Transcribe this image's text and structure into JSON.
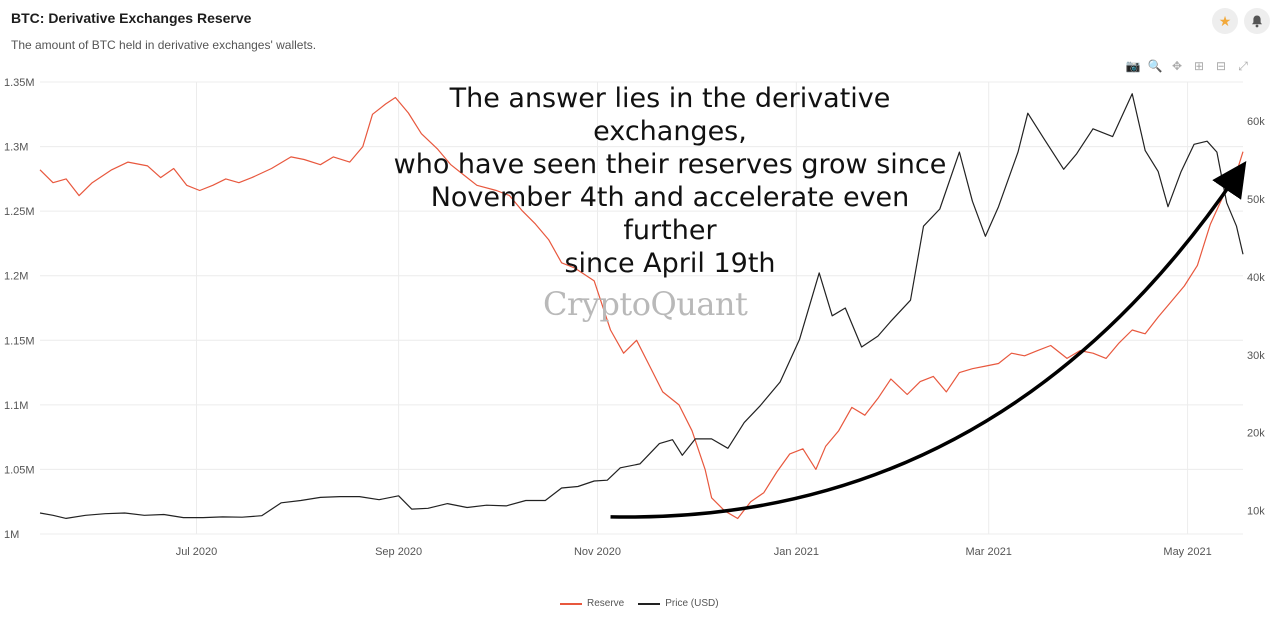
{
  "header": {
    "title": "BTC: Derivative Exchanges Reserve",
    "subtitle": "The amount of BTC held in derivative exchanges' wallets.",
    "star_icon": "star-icon",
    "bell_icon": "bell-icon"
  },
  "toolbar": {
    "icons": [
      "camera-icon",
      "zoom-icon",
      "pan-icon",
      "zoom-in-icon",
      "zoom-out-icon",
      "reset-icon"
    ],
    "glyphs": [
      "📷",
      "🔍",
      "✥",
      "⊞",
      "⊟",
      "⤢"
    ]
  },
  "annotation": {
    "lines": [
      "The answer lies in the derivative exchanges,",
      "who have seen their reserves grow since",
      "November 4th and accelerate even further",
      "since April 19th"
    ]
  },
  "watermark": "CryptoQuant",
  "colors": {
    "reserve": "#e8583e",
    "price": "#222222",
    "grid": "#ececec",
    "arrow": "#000000"
  },
  "chart_data": {
    "type": "line",
    "x_range": [
      "2020-05-14",
      "2021-05-18"
    ],
    "x_ticks": [
      {
        "date": "2020-07-01",
        "label": "Jul 2020"
      },
      {
        "date": "2020-09-01",
        "label": "Sep 2020"
      },
      {
        "date": "2020-11-01",
        "label": "Nov 2020"
      },
      {
        "date": "2021-01-01",
        "label": "Jan 2021"
      },
      {
        "date": "2021-03-01",
        "label": "Mar 2021"
      },
      {
        "date": "2021-05-01",
        "label": "May 2021"
      }
    ],
    "y_left": {
      "range": [
        1000000,
        1350000
      ],
      "ticks": [
        {
          "value": 1000000,
          "label": "1M"
        },
        {
          "value": 1050000,
          "label": "1.05M"
        },
        {
          "value": 1100000,
          "label": "1.1M"
        },
        {
          "value": 1150000,
          "label": "1.15M"
        },
        {
          "value": 1200000,
          "label": "1.2M"
        },
        {
          "value": 1250000,
          "label": "1.25M"
        },
        {
          "value": 1300000,
          "label": "1.3M"
        },
        {
          "value": 1350000,
          "label": "1.35M"
        }
      ]
    },
    "y_right": {
      "range": [
        7000,
        65000
      ],
      "ticks": [
        {
          "value": 10000,
          "label": "10k"
        },
        {
          "value": 20000,
          "label": "20k"
        },
        {
          "value": 30000,
          "label": "30k"
        },
        {
          "value": 40000,
          "label": "40k"
        },
        {
          "value": 50000,
          "label": "50k"
        },
        {
          "value": 60000,
          "label": "60k"
        }
      ]
    },
    "grid": true,
    "legend_position": "bottom-center",
    "series": [
      {
        "name": "Reserve",
        "axis": "left",
        "points": [
          [
            "2020-05-14",
            1282000
          ],
          [
            "2020-05-18",
            1272000
          ],
          [
            "2020-05-22",
            1275000
          ],
          [
            "2020-05-26",
            1262000
          ],
          [
            "2020-05-30",
            1272000
          ],
          [
            "2020-06-05",
            1282000
          ],
          [
            "2020-06-10",
            1288000
          ],
          [
            "2020-06-16",
            1285000
          ],
          [
            "2020-06-20",
            1276000
          ],
          [
            "2020-06-24",
            1283000
          ],
          [
            "2020-06-28",
            1270000
          ],
          [
            "2020-07-02",
            1266000
          ],
          [
            "2020-07-06",
            1270000
          ],
          [
            "2020-07-10",
            1275000
          ],
          [
            "2020-07-14",
            1272000
          ],
          [
            "2020-07-18",
            1276000
          ],
          [
            "2020-07-24",
            1283000
          ],
          [
            "2020-07-30",
            1292000
          ],
          [
            "2020-08-03",
            1290000
          ],
          [
            "2020-08-08",
            1286000
          ],
          [
            "2020-08-12",
            1292000
          ],
          [
            "2020-08-17",
            1288000
          ],
          [
            "2020-08-21",
            1300000
          ],
          [
            "2020-08-24",
            1325000
          ],
          [
            "2020-08-28",
            1333000
          ],
          [
            "2020-08-31",
            1338000
          ],
          [
            "2020-09-04",
            1326000
          ],
          [
            "2020-09-08",
            1310000
          ],
          [
            "2020-09-13",
            1298000
          ],
          [
            "2020-09-17",
            1286000
          ],
          [
            "2020-09-21",
            1278000
          ],
          [
            "2020-09-25",
            1270000
          ],
          [
            "2020-10-01",
            1266000
          ],
          [
            "2020-10-05",
            1262000
          ],
          [
            "2020-10-09",
            1250000
          ],
          [
            "2020-10-13",
            1240000
          ],
          [
            "2020-10-17",
            1228000
          ],
          [
            "2020-10-21",
            1210000
          ],
          [
            "2020-10-25",
            1206000
          ],
          [
            "2020-10-31",
            1196000
          ],
          [
            "2020-11-05",
            1158000
          ],
          [
            "2020-11-09",
            1140000
          ],
          [
            "2020-11-13",
            1150000
          ],
          [
            "2020-11-17",
            1130000
          ],
          [
            "2020-11-21",
            1110000
          ],
          [
            "2020-11-26",
            1100000
          ],
          [
            "2020-11-30",
            1080000
          ],
          [
            "2020-12-04",
            1050000
          ],
          [
            "2020-12-06",
            1028000
          ],
          [
            "2020-12-10",
            1018000
          ],
          [
            "2020-12-14",
            1012000
          ],
          [
            "2020-12-18",
            1025000
          ],
          [
            "2020-12-22",
            1032000
          ],
          [
            "2020-12-26",
            1048000
          ],
          [
            "2020-12-30",
            1062000
          ],
          [
            "2021-01-03",
            1066000
          ],
          [
            "2021-01-07",
            1050000
          ],
          [
            "2021-01-10",
            1068000
          ],
          [
            "2021-01-14",
            1080000
          ],
          [
            "2021-01-18",
            1098000
          ],
          [
            "2021-01-22",
            1092000
          ],
          [
            "2021-01-26",
            1105000
          ],
          [
            "2021-01-30",
            1120000
          ],
          [
            "2021-02-04",
            1108000
          ],
          [
            "2021-02-08",
            1118000
          ],
          [
            "2021-02-12",
            1122000
          ],
          [
            "2021-02-16",
            1110000
          ],
          [
            "2021-02-20",
            1125000
          ],
          [
            "2021-02-24",
            1128000
          ],
          [
            "2021-02-28",
            1130000
          ],
          [
            "2021-03-04",
            1132000
          ],
          [
            "2021-03-08",
            1140000
          ],
          [
            "2021-03-12",
            1138000
          ],
          [
            "2021-03-16",
            1142000
          ],
          [
            "2021-03-20",
            1146000
          ],
          [
            "2021-03-25",
            1136000
          ],
          [
            "2021-03-29",
            1142000
          ],
          [
            "2021-04-02",
            1140000
          ],
          [
            "2021-04-06",
            1136000
          ],
          [
            "2021-04-10",
            1148000
          ],
          [
            "2021-04-14",
            1158000
          ],
          [
            "2021-04-18",
            1155000
          ],
          [
            "2021-04-22",
            1168000
          ],
          [
            "2021-04-26",
            1180000
          ],
          [
            "2021-04-30",
            1192000
          ],
          [
            "2021-05-04",
            1208000
          ],
          [
            "2021-05-08",
            1240000
          ],
          [
            "2021-05-12",
            1262000
          ],
          [
            "2021-05-16",
            1280000
          ],
          [
            "2021-05-18",
            1296000
          ]
        ]
      },
      {
        "name": "Price (USD)",
        "axis": "right",
        "points": [
          [
            "2020-05-14",
            9700
          ],
          [
            "2020-05-18",
            9400
          ],
          [
            "2020-05-22",
            9000
          ],
          [
            "2020-05-28",
            9400
          ],
          [
            "2020-06-03",
            9600
          ],
          [
            "2020-06-09",
            9700
          ],
          [
            "2020-06-15",
            9400
          ],
          [
            "2020-06-21",
            9500
          ],
          [
            "2020-06-27",
            9100
          ],
          [
            "2020-07-03",
            9100
          ],
          [
            "2020-07-09",
            9200
          ],
          [
            "2020-07-15",
            9150
          ],
          [
            "2020-07-21",
            9350
          ],
          [
            "2020-07-27",
            11000
          ],
          [
            "2020-08-02",
            11300
          ],
          [
            "2020-08-08",
            11700
          ],
          [
            "2020-08-14",
            11800
          ],
          [
            "2020-08-20",
            11800
          ],
          [
            "2020-08-26",
            11400
          ],
          [
            "2020-09-01",
            11900
          ],
          [
            "2020-09-05",
            10200
          ],
          [
            "2020-09-10",
            10300
          ],
          [
            "2020-09-16",
            10900
          ],
          [
            "2020-09-22",
            10400
          ],
          [
            "2020-09-28",
            10700
          ],
          [
            "2020-10-04",
            10600
          ],
          [
            "2020-10-10",
            11300
          ],
          [
            "2020-10-16",
            11300
          ],
          [
            "2020-10-21",
            12900
          ],
          [
            "2020-10-26",
            13100
          ],
          [
            "2020-10-31",
            13800
          ],
          [
            "2020-11-04",
            13900
          ],
          [
            "2020-11-08",
            15500
          ],
          [
            "2020-11-14",
            16000
          ],
          [
            "2020-11-20",
            18600
          ],
          [
            "2020-11-24",
            19100
          ],
          [
            "2020-11-27",
            17100
          ],
          [
            "2020-12-01",
            19200
          ],
          [
            "2020-12-06",
            19200
          ],
          [
            "2020-12-11",
            18000
          ],
          [
            "2020-12-16",
            21300
          ],
          [
            "2020-12-21",
            23500
          ],
          [
            "2020-12-27",
            26500
          ],
          [
            "2021-01-02",
            32000
          ],
          [
            "2021-01-08",
            40500
          ],
          [
            "2021-01-12",
            35000
          ],
          [
            "2021-01-16",
            36000
          ],
          [
            "2021-01-21",
            31000
          ],
          [
            "2021-01-26",
            32400
          ],
          [
            "2021-01-30",
            34300
          ],
          [
            "2021-02-05",
            37000
          ],
          [
            "2021-02-09",
            46500
          ],
          [
            "2021-02-14",
            48700
          ],
          [
            "2021-02-20",
            56000
          ],
          [
            "2021-02-24",
            49700
          ],
          [
            "2021-02-28",
            45200
          ],
          [
            "2021-03-04",
            49000
          ],
          [
            "2021-03-10",
            56000
          ],
          [
            "2021-03-13",
            61000
          ],
          [
            "2021-03-18",
            57700
          ],
          [
            "2021-03-24",
            53800
          ],
          [
            "2021-03-28",
            55800
          ],
          [
            "2021-04-02",
            59000
          ],
          [
            "2021-04-08",
            58000
          ],
          [
            "2021-04-14",
            63500
          ],
          [
            "2021-04-18",
            56200
          ],
          [
            "2021-04-22",
            53500
          ],
          [
            "2021-04-25",
            49000
          ],
          [
            "2021-04-29",
            53500
          ],
          [
            "2021-05-03",
            57000
          ],
          [
            "2021-05-07",
            57400
          ],
          [
            "2021-05-10",
            56000
          ],
          [
            "2021-05-13",
            49500
          ],
          [
            "2021-05-16",
            46500
          ],
          [
            "2021-05-18",
            42900
          ]
        ]
      }
    ],
    "arrow": {
      "from": [
        "2020-11-05",
        9200
      ],
      "to": [
        "2021-05-16",
        53000
      ],
      "axis": "right"
    }
  }
}
